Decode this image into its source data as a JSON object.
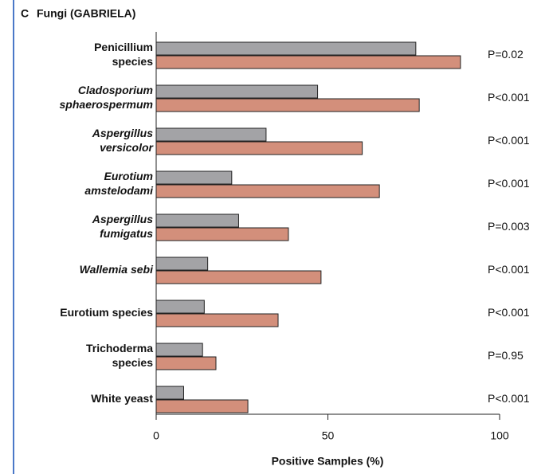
{
  "chart_data": {
    "type": "hbar",
    "panel": "C",
    "title": "Fungi (GABRIELA)",
    "categories": [
      [
        "Penicillium",
        "species"
      ],
      [
        "Cladosporium",
        "sphaerospermum"
      ],
      [
        "Aspergillus",
        "versicolor"
      ],
      [
        "Eurotium",
        "amstelodami"
      ],
      [
        "Aspergillus",
        "fumigatus"
      ],
      [
        "Wallemia sebi"
      ],
      [
        "Eurotium species"
      ],
      [
        "Trichoderma",
        "species"
      ],
      [
        "White yeast"
      ]
    ],
    "italic": [
      false,
      true,
      true,
      true,
      true,
      true,
      false,
      false,
      false
    ],
    "series": [
      {
        "color": "#a3a3a6",
        "values": [
          75.6,
          47,
          32,
          22,
          24,
          15,
          14,
          13.5,
          8
        ]
      },
      {
        "color": "#d38f7b",
        "values": [
          88.6,
          76.6,
          60,
          65,
          38.5,
          48,
          35.5,
          17.4,
          26.7
        ]
      }
    ],
    "annotations": [
      "P=0.02",
      "P<0.001",
      "P<0.001",
      "P<0.001",
      "P=0.003",
      "P<0.001",
      "P<0.001",
      "P=0.95",
      "P<0.001"
    ],
    "xlim": [
      0,
      100
    ],
    "xticks": [
      0,
      50,
      100
    ],
    "xlabel": "Positive Samples (%)"
  }
}
